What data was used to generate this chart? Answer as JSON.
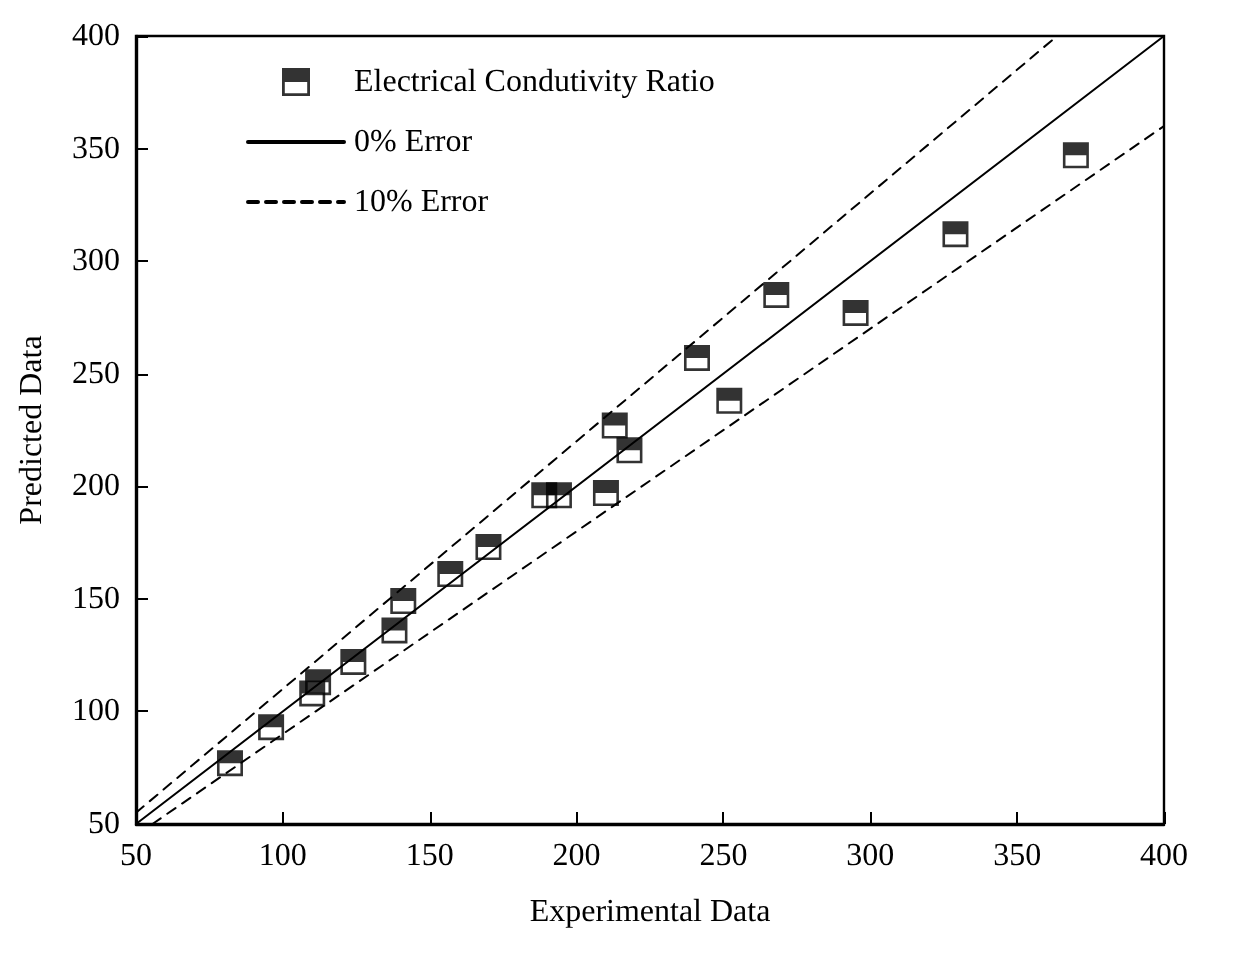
{
  "chart_data": {
    "type": "scatter",
    "xlabel": "Experimental Data",
    "ylabel": "Predicted Data",
    "xlim": [
      50,
      400
    ],
    "ylim": [
      50,
      400
    ],
    "xticks": [
      50,
      100,
      150,
      200,
      250,
      300,
      350,
      400
    ],
    "yticks": [
      50,
      100,
      150,
      200,
      250,
      300,
      350,
      400
    ],
    "grid": false,
    "legend": "top left",
    "series": [
      {
        "name": "Electrical Condutivity Ratio",
        "color": "#000000",
        "marker": "square",
        "x": [
          82,
          96,
          112,
          110,
          124,
          138,
          141,
          157,
          170,
          189,
          194,
          210,
          213,
          218,
          241,
          252,
          268,
          295,
          329,
          370
        ],
        "values": [
          77,
          93,
          113,
          108,
          122,
          136,
          149,
          161,
          173,
          196,
          196,
          197,
          227,
          216,
          257,
          238,
          285,
          277,
          312,
          347
        ]
      },
      {
        "name": "0% Error",
        "type": "line",
        "color": "#000000",
        "line_style": "solid",
        "marker": "none",
        "x": [
          50,
          400
        ],
        "values": [
          50,
          400
        ]
      },
      {
        "name": "10% Error",
        "type": "line",
        "color": "#000000",
        "line_style": "dashed",
        "marker": "none",
        "x": [
          50,
          363.6
        ],
        "values": [
          55,
          400
        ]
      },
      {
        "type": "line",
        "color": "#000000",
        "line_style": "dashed",
        "marker": "none",
        "x": [
          55.6,
          400
        ],
        "values": [
          50,
          360
        ]
      }
    ]
  }
}
